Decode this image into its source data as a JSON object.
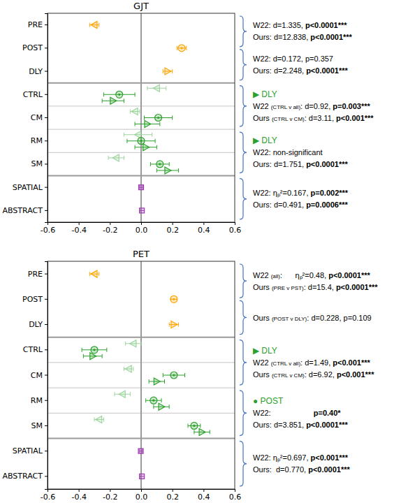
{
  "chart_data": [
    {
      "type": "dot",
      "title": "GJT",
      "categories": [
        "PRE",
        "POST",
        "DLY",
        "CTRL",
        "CM",
        "RM",
        "SM",
        "SPATIAL",
        "ABSTRACT"
      ],
      "xlim": [
        -0.6,
        0.6
      ],
      "xticks": [
        -0.6,
        -0.4,
        -0.2,
        {
          "value": 0,
          "label": "0.0"
        },
        0.2,
        0.4,
        0.6
      ],
      "series": [
        {
          "marker": "triangle-left",
          "color": "#ffa500",
          "values": [
            -0.3,
            null,
            null,
            null,
            null,
            null,
            null,
            null,
            null
          ],
          "errors": [
            0.03,
            null,
            null,
            null,
            null,
            null,
            null,
            null,
            null
          ]
        },
        {
          "marker": "circle",
          "color": "#ffa500",
          "values": [
            null,
            0.26,
            null,
            null,
            null,
            null,
            null,
            null,
            null
          ],
          "errors": [
            null,
            0.03,
            null,
            null,
            null,
            null,
            null,
            null,
            null
          ]
        },
        {
          "marker": "triangle-right",
          "color": "#ffa500",
          "values": [
            null,
            null,
            0.17,
            null,
            null,
            null,
            null,
            null,
            null
          ],
          "errors": [
            null,
            null,
            0.03,
            null,
            null,
            null,
            null,
            null,
            null
          ]
        },
        {
          "marker": "triangle-left",
          "color": "#9dd49d",
          "values": [
            null,
            null,
            null,
            0.1,
            -0.04,
            -0.02,
            -0.16,
            null,
            null
          ],
          "errors": [
            null,
            null,
            null,
            0.06,
            0.03,
            0.09,
            0.05,
            null,
            null
          ]
        },
        {
          "marker": "circle",
          "color": "#2ca02c",
          "values": [
            null,
            null,
            null,
            -0.14,
            0.11,
            0.0,
            0.12,
            null,
            null
          ],
          "errors": [
            null,
            null,
            null,
            0.1,
            0.09,
            0.09,
            0.06,
            null,
            null
          ]
        },
        {
          "marker": "triangle-right",
          "color": "#2ca02c",
          "values": [
            null,
            null,
            null,
            -0.18,
            0.04,
            0.03,
            0.17,
            null,
            null
          ],
          "errors": [
            null,
            null,
            null,
            0.07,
            0.08,
            0.07,
            0.07,
            null,
            null
          ]
        },
        {
          "marker": "square",
          "color": "#a03cb4",
          "values": [
            null,
            null,
            null,
            null,
            null,
            null,
            null,
            0.0,
            0.005
          ],
          "errors": [
            null,
            null,
            null,
            null,
            null,
            null,
            null,
            0.01,
            0.015
          ]
        }
      ],
      "annotations": [
        {
          "from": "PRE",
          "to": "POST",
          "lines": [
            [
              "W22: d=1.335, ",
              "p<0.0001***"
            ],
            [
              "Ours: d=12.838, ",
              "p<0.0001***"
            ]
          ]
        },
        {
          "from": "POST",
          "to": "DLY",
          "lines": [
            [
              "W22: d=0.172, p=0.357"
            ],
            [
              "Ours: d=2.248, ",
              "p<0.0001***"
            ]
          ]
        },
        {
          "from": "CTRL",
          "to": "CM",
          "header": "▶ DLY",
          "lines": [
            [
              "W22 ",
              "(CTRL v all)",
              ": d=0.92, ",
              "p=0.003***"
            ],
            [
              "Ours ",
              "(CTRL v CM)",
              ": d=3.11, ",
              "p<0.001***"
            ]
          ]
        },
        {
          "from": "RM",
          "to": "SM",
          "header": "▶ DLY",
          "lines": [
            [
              "W22: non-significant"
            ],
            [
              "Ours: d=1.751, ",
              "p<0.0001***"
            ]
          ]
        },
        {
          "from": "SPATIAL",
          "to": "ABSTRACT",
          "lines": [
            [
              "W22: ηₚ²=0.167, ",
              "p=0.002***"
            ],
            [
              "Ours: d=0.491, ",
              "p=0.0006***"
            ]
          ]
        }
      ]
    },
    {
      "type": "dot",
      "title": "PET",
      "categories": [
        "PRE",
        "POST",
        "DLY",
        "CTRL",
        "CM",
        "RM",
        "SM",
        "SPATIAL",
        "ABSTRACT"
      ],
      "xlim": [
        -0.6,
        0.6
      ],
      "xticks": [
        -0.6,
        -0.4,
        -0.2,
        {
          "value": 0,
          "label": "0.0"
        },
        0.2,
        0.4,
        0.6
      ],
      "series": [
        {
          "marker": "triangle-left",
          "color": "#ffa500",
          "values": [
            -0.3,
            null,
            null,
            null,
            null,
            null,
            null,
            null,
            null
          ],
          "errors": [
            0.03,
            null,
            null,
            null,
            null,
            null,
            null,
            null,
            null
          ]
        },
        {
          "marker": "circle",
          "color": "#ffa500",
          "values": [
            null,
            0.21,
            null,
            null,
            null,
            null,
            null,
            null,
            null
          ],
          "errors": [
            null,
            0.02,
            null,
            null,
            null,
            null,
            null,
            null,
            null
          ]
        },
        {
          "marker": "triangle-right",
          "color": "#ffa500",
          "values": [
            null,
            null,
            0.21,
            null,
            null,
            null,
            null,
            null,
            null
          ],
          "errors": [
            null,
            null,
            0.03,
            null,
            null,
            null,
            null,
            null,
            null
          ]
        },
        {
          "marker": "triangle-left",
          "color": "#9dd49d",
          "values": [
            null,
            null,
            null,
            -0.05,
            -0.08,
            -0.12,
            -0.27,
            null,
            null
          ],
          "errors": [
            null,
            null,
            null,
            0.05,
            0.03,
            0.05,
            0.03,
            null,
            null
          ]
        },
        {
          "marker": "circle",
          "color": "#2ca02c",
          "values": [
            null,
            null,
            null,
            -0.3,
            0.21,
            0.08,
            0.34,
            null,
            null
          ],
          "errors": [
            null,
            null,
            null,
            0.08,
            0.07,
            0.05,
            0.04,
            null,
            null
          ]
        },
        {
          "marker": "triangle-right",
          "color": "#2ca02c",
          "values": [
            null,
            null,
            null,
            -0.31,
            0.1,
            0.13,
            0.39,
            null,
            null
          ],
          "errors": [
            null,
            null,
            null,
            0.06,
            0.05,
            0.05,
            0.05,
            null,
            null
          ]
        },
        {
          "marker": "square",
          "color": "#a03cb4",
          "values": [
            null,
            null,
            null,
            null,
            null,
            null,
            null,
            -0.002,
            0.005
          ],
          "errors": [
            null,
            null,
            null,
            null,
            null,
            null,
            null,
            0.01,
            0.015
          ]
        }
      ],
      "annotations": [
        {
          "from": "PRE",
          "to": "POST",
          "lines": [
            [
              "W22 ",
              "(all)",
              ":      ηₚ²=0.48, ",
              "p<0.0001***"
            ],
            [
              "Ours ",
              "(PRE v PST)",
              ": d=15.4, ",
              "p<0.0001***"
            ]
          ]
        },
        {
          "from": "POST",
          "to": "DLY",
          "lines": [
            [
              "Ours ",
              "(POST v DLY)",
              ": d=0.228, p=0.109"
            ]
          ]
        },
        {
          "from": "CTRL",
          "to": "CM",
          "header": "▶ DLY",
          "lines": [
            [
              "W22 ",
              "(CTRL v all)",
              ": d=1.49, ",
              "p<0.001***"
            ],
            [
              "Ours ",
              "(CTRL v CM)",
              ": d=6.92, ",
              "p<0.001***"
            ]
          ]
        },
        {
          "from": "RM",
          "to": "SM",
          "header": "● POST",
          "lines": [
            [
              "W22:                    ",
              "p=0.40*"
            ],
            [
              "Ours: d=3.851, ",
              "p<0.0001***"
            ]
          ]
        },
        {
          "from": "SPATIAL",
          "to": "ABSTRACT",
          "lines": [
            [
              "W22: ηₚ²=0.697, ",
              "p<0.001***"
            ],
            [
              "Ours:  d=0.770, ",
              "p<0.0001***"
            ]
          ]
        }
      ]
    }
  ]
}
